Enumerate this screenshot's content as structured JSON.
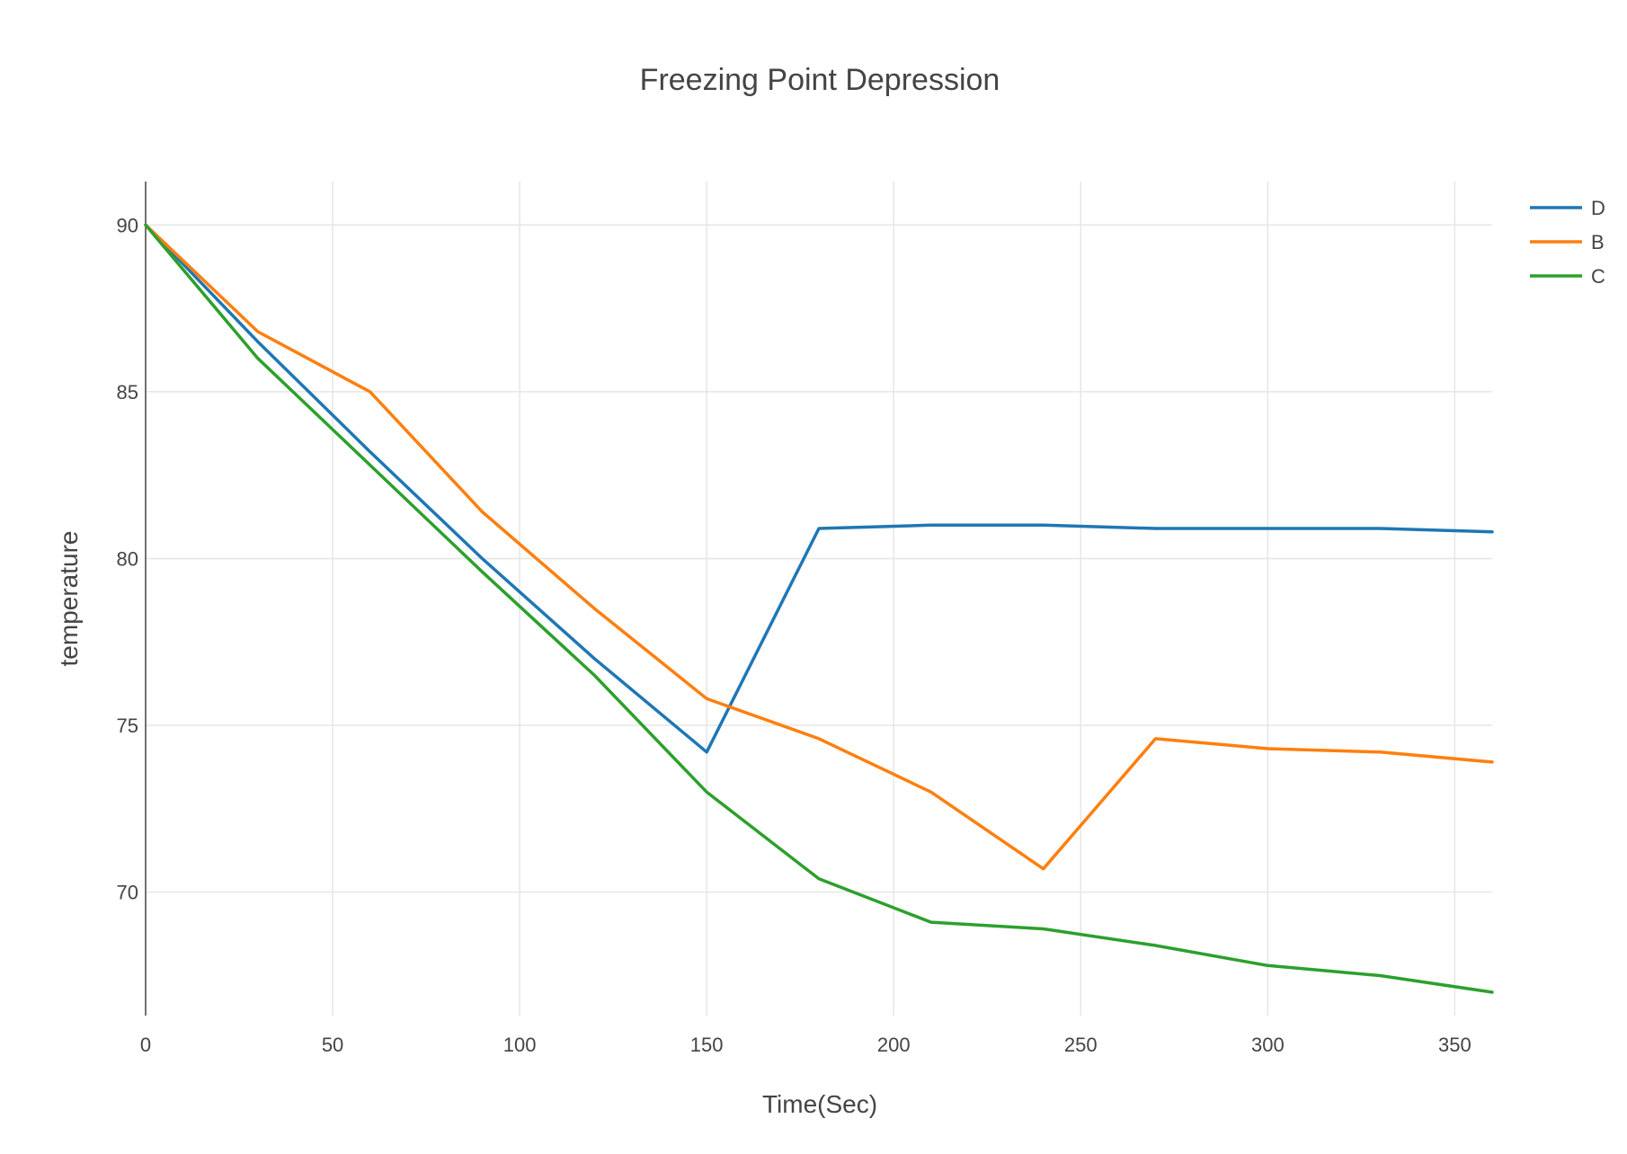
{
  "chart_data": {
    "type": "line",
    "title": "Freezing Point Depression",
    "xlabel": "Time(Sec)",
    "ylabel": "temperature",
    "xlim": [
      0,
      360
    ],
    "ylim": [
      66.3,
      91.3
    ],
    "x_ticks": [
      0,
      50,
      100,
      150,
      200,
      250,
      300,
      350
    ],
    "y_ticks": [
      70,
      75,
      80,
      85,
      90
    ],
    "grid": true,
    "legend_position": "top-right",
    "series": [
      {
        "name": "D",
        "color": "#1f77b4",
        "x": [
          0,
          30,
          60,
          90,
          120,
          150,
          180,
          210,
          240,
          270,
          300,
          330,
          360
        ],
        "values": [
          90,
          86.5,
          83.2,
          80.0,
          77.0,
          74.2,
          80.9,
          81.0,
          81.0,
          80.9,
          80.9,
          80.9,
          80.8
        ]
      },
      {
        "name": "B",
        "color": "#ff7f0e",
        "x": [
          0,
          30,
          60,
          90,
          120,
          150,
          180,
          210,
          240,
          270,
          300,
          330,
          360
        ],
        "values": [
          90,
          86.8,
          85.0,
          81.4,
          78.5,
          75.8,
          74.6,
          73.0,
          70.7,
          74.6,
          74.3,
          74.2,
          73.9
        ]
      },
      {
        "name": "C",
        "color": "#2ca02c",
        "x": [
          0,
          30,
          60,
          90,
          120,
          150,
          180,
          210,
          240,
          270,
          300,
          330,
          360
        ],
        "values": [
          90,
          86.0,
          82.8,
          79.6,
          76.5,
          73.0,
          70.4,
          69.1,
          68.9,
          68.4,
          67.8,
          67.5,
          67.0
        ]
      }
    ]
  }
}
